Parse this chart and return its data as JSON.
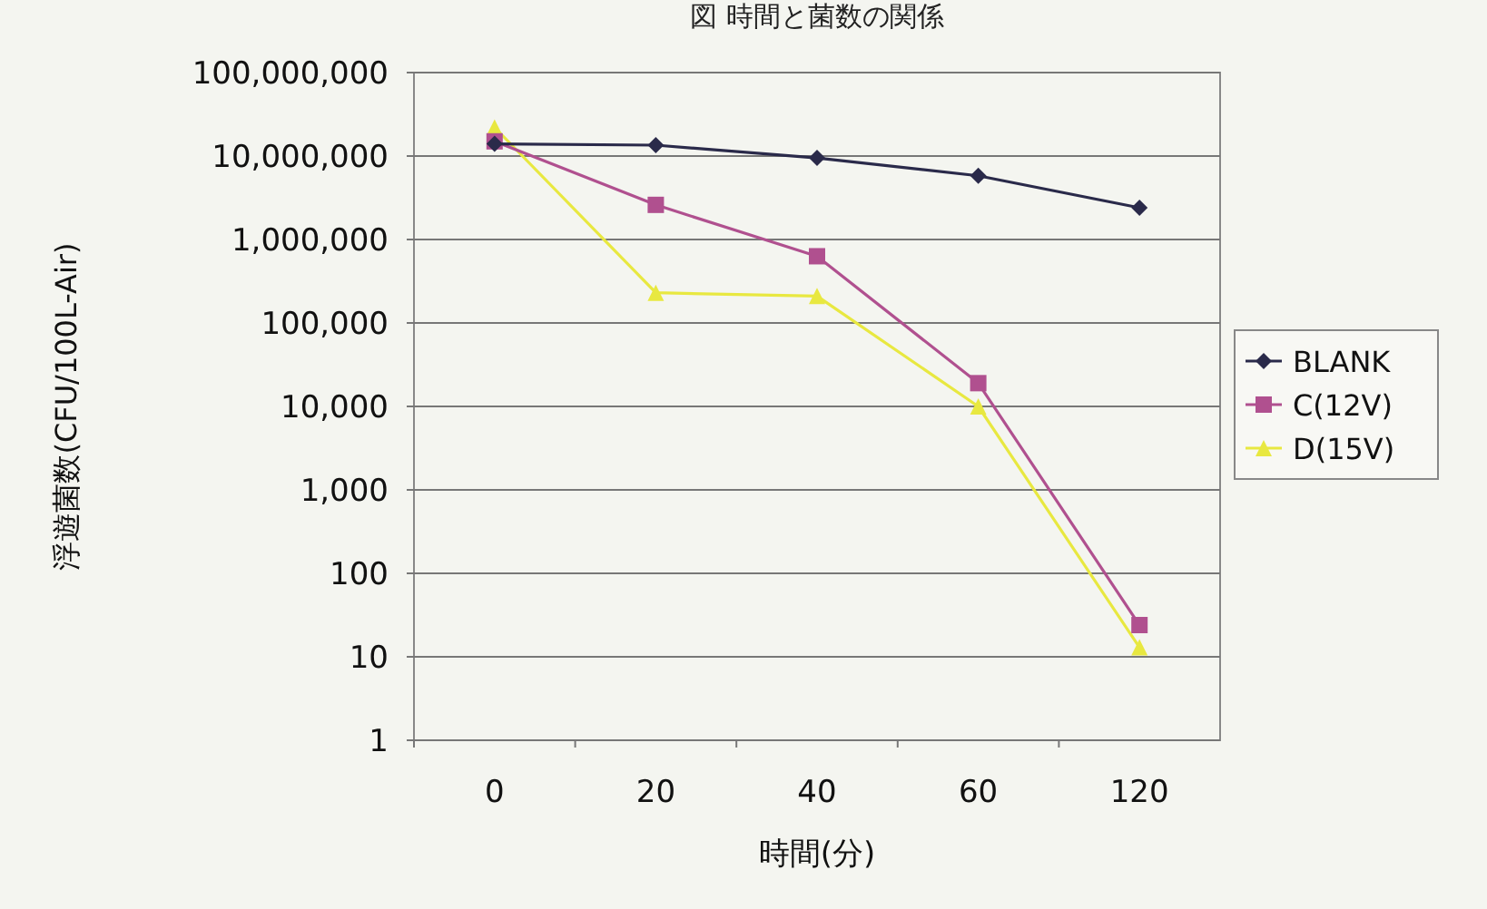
{
  "chart_data": {
    "type": "line",
    "title": "図 時間と菌数の関係",
    "xlabel": "時間(分)",
    "ylabel": "浮遊菌数(CFU/100L-Air)",
    "categories": [
      "0",
      "20",
      "40",
      "60",
      "120"
    ],
    "log": "y",
    "ylim": [
      1,
      100000000
    ],
    "yticks": [
      {
        "value": 1,
        "label": "1"
      },
      {
        "value": 10,
        "label": "10"
      },
      {
        "value": 100,
        "label": "100"
      },
      {
        "value": 1000,
        "label": "1,000"
      },
      {
        "value": 10000,
        "label": "10,000"
      },
      {
        "value": 100000,
        "label": "100,000"
      },
      {
        "value": 1000000,
        "label": "1,000,000"
      },
      {
        "value": 10000000,
        "label": "10,000,000"
      },
      {
        "value": 100000000,
        "label": "100,000,000"
      }
    ],
    "grid": "y",
    "legend": "right",
    "series": [
      {
        "name": "BLANK",
        "color": "#2a2a4a",
        "marker": "diamond",
        "values": [
          14000000,
          13500000,
          9500000,
          5800000,
          2400000
        ]
      },
      {
        "name": "C(12V)",
        "color": "#b0508f",
        "marker": "square",
        "values": [
          15000000,
          2600000,
          630000,
          19000,
          24
        ]
      },
      {
        "name": "D(15V)",
        "color": "#e8e840",
        "marker": "triangle",
        "values": [
          22000000,
          230000,
          210000,
          10000,
          13
        ]
      }
    ]
  }
}
